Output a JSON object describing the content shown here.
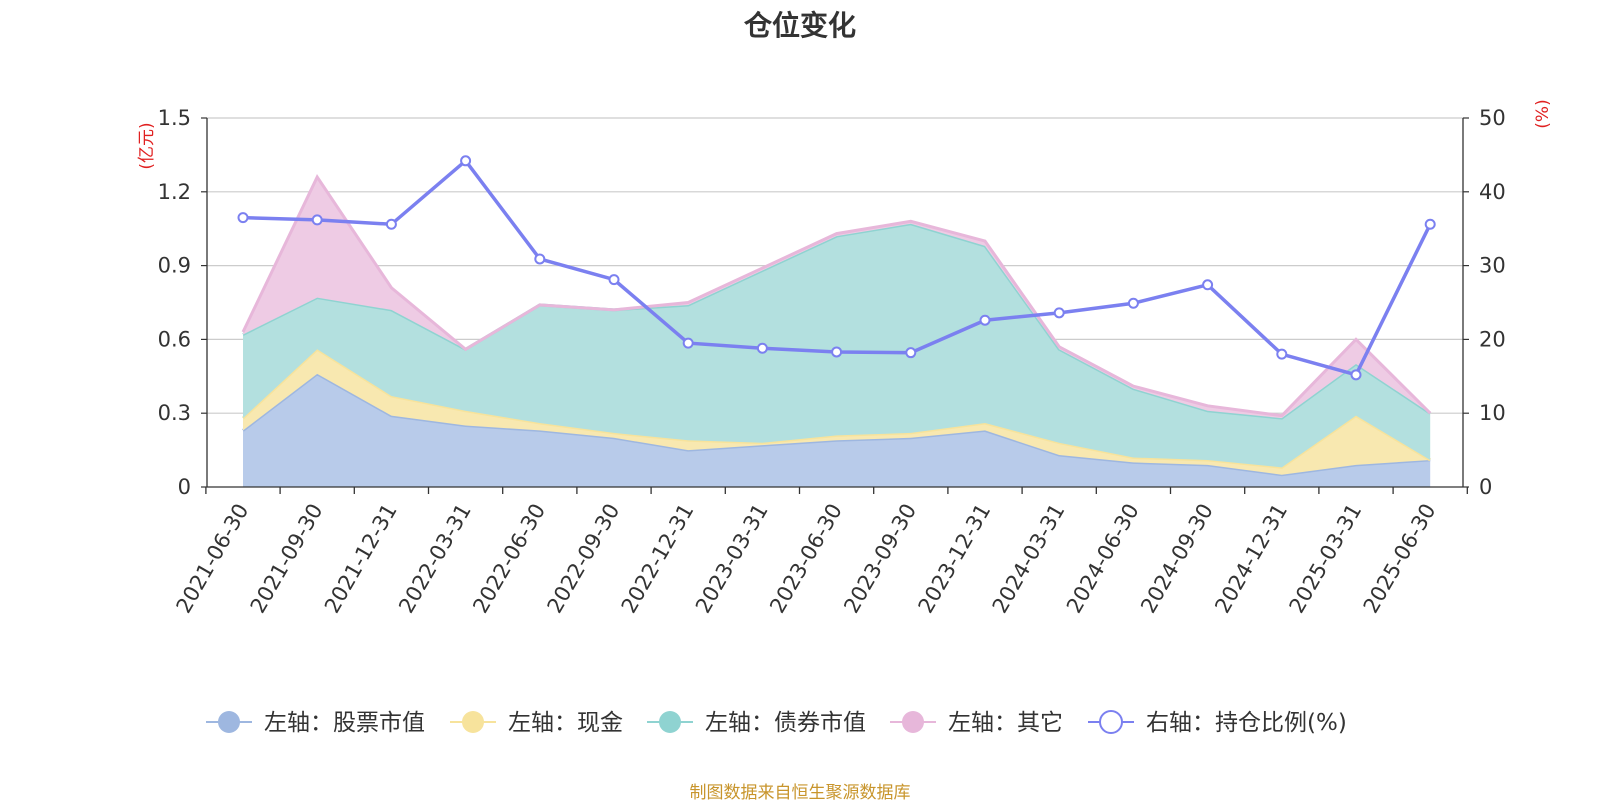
{
  "chart_data": {
    "type": "area",
    "title": "仓位变化",
    "source_note": "制图数据来自恒生聚源数据库",
    "left_axis": {
      "unit": "(亿元)",
      "ylim": [
        0,
        1.5
      ],
      "ticks": [
        "0",
        "0.3",
        "0.6",
        "0.9",
        "1.2",
        "1.5"
      ],
      "tick_values": [
        0,
        0.3,
        0.6,
        0.9,
        1.2,
        1.5
      ]
    },
    "right_axis": {
      "unit": "(%)",
      "ylim": [
        0,
        50
      ],
      "ticks": [
        "0",
        "10",
        "20",
        "30",
        "40",
        "50"
      ],
      "tick_values": [
        0,
        10,
        20,
        30,
        40,
        50
      ]
    },
    "grid": true,
    "legend_position": "bottom",
    "categories": [
      "2021-06-30",
      "2021-09-30",
      "2021-12-31",
      "2022-03-31",
      "2022-06-30",
      "2022-09-30",
      "2022-12-31",
      "2023-03-31",
      "2023-06-30",
      "2023-09-30",
      "2023-12-31",
      "2024-03-31",
      "2024-06-30",
      "2024-09-30",
      "2024-12-31",
      "2025-03-31",
      "2025-06-30"
    ],
    "series": [
      {
        "name": "左轴：股票市值",
        "axis": "left",
        "stacked": true,
        "color": "#9eb7e0",
        "fill": "#b8cbea",
        "values": [
          0.23,
          0.46,
          0.29,
          0.25,
          0.23,
          0.2,
          0.15,
          0.17,
          0.19,
          0.2,
          0.23,
          0.13,
          0.1,
          0.09,
          0.05,
          0.09,
          0.11
        ]
      },
      {
        "name": "左轴：现金",
        "axis": "left",
        "stacked": true,
        "color": "#f7e39c",
        "fill": "#f8e8b0",
        "values": [
          0.05,
          0.1,
          0.08,
          0.06,
          0.03,
          0.02,
          0.04,
          0.01,
          0.02,
          0.02,
          0.03,
          0.05,
          0.02,
          0.02,
          0.03,
          0.2,
          0.0
        ]
      },
      {
        "name": "左轴：债券市值",
        "axis": "left",
        "stacked": true,
        "color": "#8fd3d1",
        "fill": "#b3e0df",
        "values": [
          0.34,
          0.21,
          0.35,
          0.25,
          0.48,
          0.5,
          0.55,
          0.7,
          0.81,
          0.85,
          0.72,
          0.38,
          0.28,
          0.2,
          0.2,
          0.21,
          0.19
        ]
      },
      {
        "name": "左轴：其它",
        "axis": "left",
        "stacked": true,
        "color": "#e7b7da",
        "fill": "#eecbe4",
        "values": [
          0.01,
          0.49,
          0.09,
          0.0,
          0.0,
          0.0,
          0.01,
          0.01,
          0.01,
          0.01,
          0.02,
          0.01,
          0.01,
          0.02,
          0.01,
          0.1,
          0.0
        ]
      },
      {
        "name": "右轴：持仓比例(%)",
        "axis": "right",
        "type": "line",
        "color": "#7b80f0",
        "values": [
          36.5,
          36.2,
          35.6,
          44.2,
          30.9,
          28.1,
          19.5,
          18.8,
          18.3,
          18.2,
          22.6,
          23.6,
          24.9,
          27.4,
          18.0,
          15.2,
          35.6
        ]
      }
    ]
  }
}
